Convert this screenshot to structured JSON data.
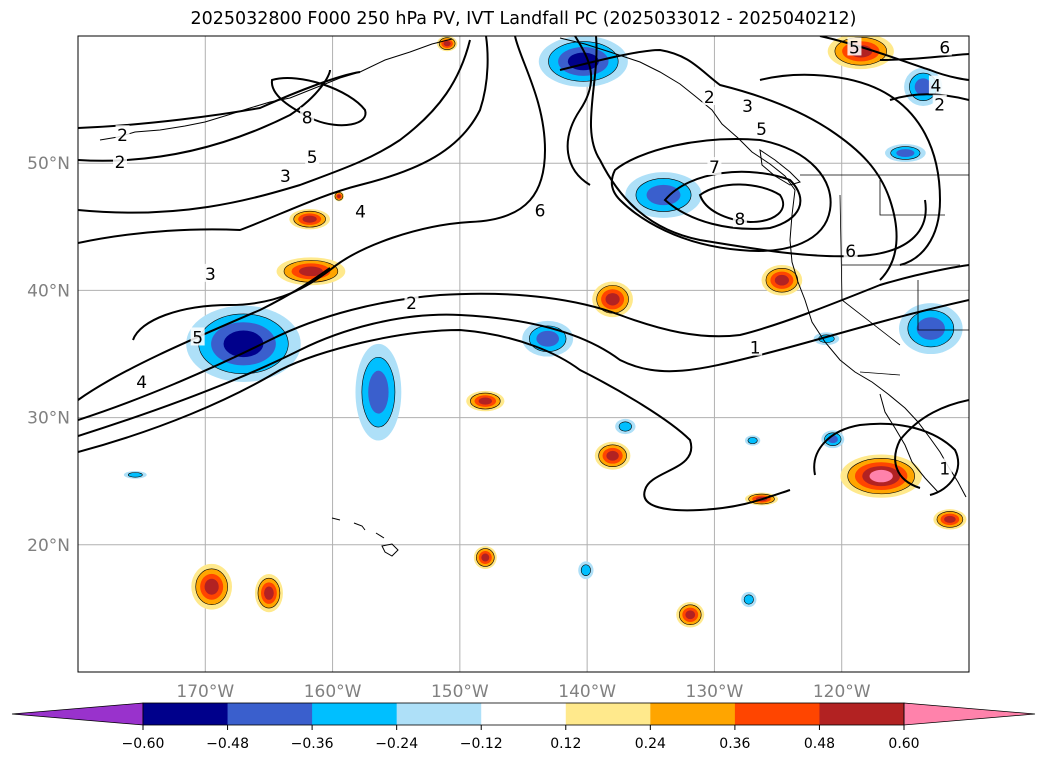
{
  "title": "2025032800 F000 250 hPa PV, IVT Landfall PC (2025033012 - 2025040212)",
  "lat_axis": [
    {
      "label": "50°N",
      "lat": 50
    },
    {
      "label": "40°N",
      "lat": 40
    },
    {
      "label": "30°N",
      "lat": 30
    },
    {
      "label": "20°N",
      "lat": 20
    }
  ],
  "lon_axis": [
    {
      "label": "170°W",
      "lon": -170
    },
    {
      "label": "160°W",
      "lon": -160
    },
    {
      "label": "150°W",
      "lon": -150
    },
    {
      "label": "140°W",
      "lon": -140
    },
    {
      "label": "130°W",
      "lon": -130
    },
    {
      "label": "120°W",
      "lon": -120
    }
  ],
  "map_extent": {
    "lon_min": -180,
    "lon_max": -110,
    "lat_min": 10,
    "lat_max": 60
  },
  "grid": true,
  "colorbar": {
    "ticks": [
      "−0.60",
      "−0.48",
      "−0.36",
      "−0.24",
      "−0.12",
      "0.12",
      "0.24",
      "0.36",
      "0.48",
      "0.60"
    ],
    "colors": [
      "#9932cc",
      "#00008b",
      "#3a5fcd",
      "#00bfff",
      "#aee0f8",
      "#ffffff",
      "#ffe98c",
      "#ffa500",
      "#ff4500",
      "#b22222",
      "#ff82ab"
    ],
    "extend": "both"
  },
  "pv_contour_labels": [
    {
      "text": "2",
      "lon": -176.5,
      "lat": 52.2
    },
    {
      "text": "2",
      "lon": -176.7,
      "lat": 50.1
    },
    {
      "text": "8",
      "lon": -162.0,
      "lat": 53.6
    },
    {
      "text": "5",
      "lon": -161.6,
      "lat": 50.5
    },
    {
      "text": "3",
      "lon": -163.7,
      "lat": 49.0
    },
    {
      "text": "4",
      "lon": -157.8,
      "lat": 46.2
    },
    {
      "text": "3",
      "lon": -169.6,
      "lat": 41.3
    },
    {
      "text": "2",
      "lon": -153.8,
      "lat": 39.0
    },
    {
      "text": "5",
      "lon": -170.6,
      "lat": 36.3
    },
    {
      "text": "4",
      "lon": -175.0,
      "lat": 32.8
    },
    {
      "text": "6",
      "lon": -143.7,
      "lat": 46.3
    },
    {
      "text": "2",
      "lon": -130.4,
      "lat": 55.2
    },
    {
      "text": "3",
      "lon": -127.4,
      "lat": 54.5
    },
    {
      "text": "5",
      "lon": -126.3,
      "lat": 52.7
    },
    {
      "text": "7",
      "lon": -130.0,
      "lat": 49.7
    },
    {
      "text": "8",
      "lon": -128.0,
      "lat": 45.6
    },
    {
      "text": "5",
      "lon": -119.0,
      "lat": 59.1
    },
    {
      "text": "4",
      "lon": -112.6,
      "lat": 56.1
    },
    {
      "text": "6",
      "lon": -111.9,
      "lat": 59.1
    },
    {
      "text": "2",
      "lon": -112.3,
      "lat": 54.6
    },
    {
      "text": "6",
      "lon": -119.3,
      "lat": 43.1
    },
    {
      "text": "1",
      "lon": -126.8,
      "lat": 35.5
    },
    {
      "text": "1",
      "lon": -111.9,
      "lat": 26.0
    }
  ],
  "ivt_blobs": [
    {
      "lon": -167.0,
      "lat": 35.8,
      "rx": 4.5,
      "ry": 3.0,
      "sign": "neg",
      "level": 3
    },
    {
      "lon": -156.4,
      "lat": 32.0,
      "rx": 1.8,
      "ry": 3.8,
      "sign": "neg",
      "level": 2
    },
    {
      "lon": -143.1,
      "lat": 36.2,
      "rx": 2.0,
      "ry": 1.4,
      "sign": "neg",
      "level": 2
    },
    {
      "lon": -140.3,
      "lat": 58.0,
      "rx": 3.5,
      "ry": 2.0,
      "sign": "neg",
      "level": 3
    },
    {
      "lon": -134.0,
      "lat": 47.5,
      "rx": 3.0,
      "ry": 1.8,
      "sign": "neg",
      "level": 2
    },
    {
      "lon": -113.6,
      "lat": 56.0,
      "rx": 1.5,
      "ry": 1.5,
      "sign": "neg",
      "level": 2
    },
    {
      "lon": -115.0,
      "lat": 50.8,
      "rx": 1.6,
      "ry": 0.7,
      "sign": "neg",
      "level": 2
    },
    {
      "lon": -113.0,
      "lat": 37.0,
      "rx": 2.5,
      "ry": 2.0,
      "sign": "neg",
      "level": 2
    },
    {
      "lon": -121.2,
      "lat": 36.2,
      "rx": 1.0,
      "ry": 0.5,
      "sign": "neg",
      "level": 1
    },
    {
      "lon": -120.7,
      "lat": 28.3,
      "rx": 0.9,
      "ry": 0.7,
      "sign": "neg",
      "level": 2
    },
    {
      "lon": -137.0,
      "lat": 29.3,
      "rx": 0.8,
      "ry": 0.6,
      "sign": "neg",
      "level": 1
    },
    {
      "lon": -127.0,
      "lat": 28.2,
      "rx": 0.6,
      "ry": 0.4,
      "sign": "neg",
      "level": 1
    },
    {
      "lon": -140.1,
      "lat": 18.0,
      "rx": 0.6,
      "ry": 0.7,
      "sign": "neg",
      "level": 1
    },
    {
      "lon": -127.3,
      "lat": 15.7,
      "rx": 0.6,
      "ry": 0.6,
      "sign": "neg",
      "level": 1
    },
    {
      "lon": -175.5,
      "lat": 25.5,
      "rx": 0.9,
      "ry": 0.3,
      "sign": "neg",
      "level": 1
    },
    {
      "lon": -161.7,
      "lat": 41.5,
      "rx": 2.7,
      "ry": 1.1,
      "sign": "pos",
      "level": 3
    },
    {
      "lon": -161.8,
      "lat": 45.6,
      "rx": 1.6,
      "ry": 0.8,
      "sign": "pos",
      "level": 3
    },
    {
      "lon": -159.5,
      "lat": 47.4,
      "rx": 0.4,
      "ry": 0.4,
      "sign": "pos",
      "level": 3
    },
    {
      "lon": -138.0,
      "lat": 39.3,
      "rx": 1.6,
      "ry": 1.4,
      "sign": "pos",
      "level": 3
    },
    {
      "lon": -124.7,
      "lat": 40.8,
      "rx": 1.6,
      "ry": 1.2,
      "sign": "pos",
      "level": 3
    },
    {
      "lon": -148.0,
      "lat": 31.3,
      "rx": 1.5,
      "ry": 0.8,
      "sign": "pos",
      "level": 3
    },
    {
      "lon": -138.0,
      "lat": 27.0,
      "rx": 1.4,
      "ry": 1.1,
      "sign": "pos",
      "level": 3
    },
    {
      "lon": -126.3,
      "lat": 23.6,
      "rx": 1.3,
      "ry": 0.5,
      "sign": "pos",
      "level": 3
    },
    {
      "lon": -116.9,
      "lat": 25.4,
      "rx": 3.2,
      "ry": 1.7,
      "sign": "pos",
      "level": 4
    },
    {
      "lon": -111.5,
      "lat": 22.0,
      "rx": 1.3,
      "ry": 0.8,
      "sign": "pos",
      "level": 3
    },
    {
      "lon": -118.5,
      "lat": 58.8,
      "rx": 2.6,
      "ry": 1.4,
      "sign": "pos",
      "level": 3
    },
    {
      "lon": -151.0,
      "lat": 59.4,
      "rx": 0.8,
      "ry": 0.6,
      "sign": "pos",
      "level": 3
    },
    {
      "lon": -169.5,
      "lat": 16.7,
      "rx": 1.6,
      "ry": 1.8,
      "sign": "pos",
      "level": 3
    },
    {
      "lon": -165.0,
      "lat": 16.2,
      "rx": 1.1,
      "ry": 1.5,
      "sign": "pos",
      "level": 3
    },
    {
      "lon": -148.0,
      "lat": 19.0,
      "rx": 0.9,
      "ry": 0.9,
      "sign": "pos",
      "level": 3
    },
    {
      "lon": -131.9,
      "lat": 14.5,
      "rx": 1.1,
      "ry": 1.0,
      "sign": "pos",
      "level": 3
    }
  ]
}
